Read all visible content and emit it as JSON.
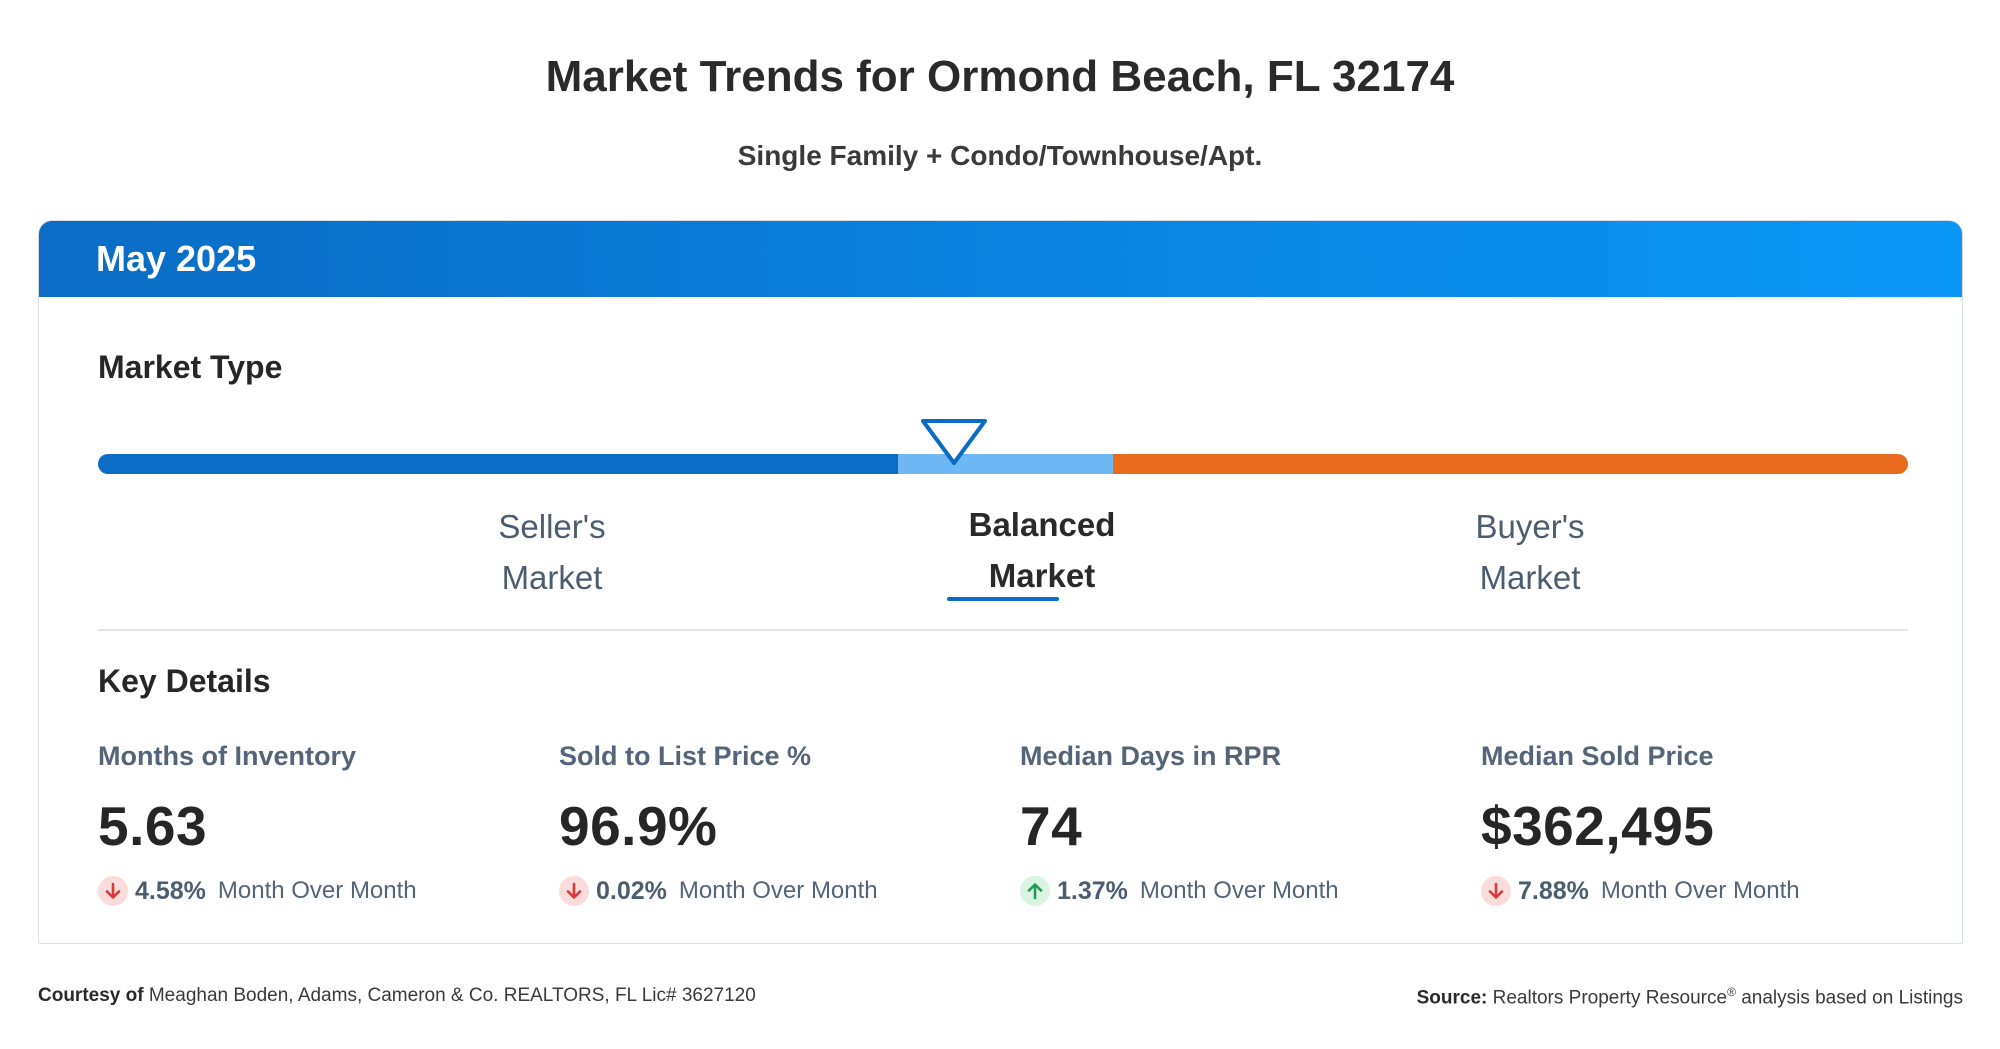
{
  "header": {
    "title": "Market Trends for Ormond Beach, FL 32174",
    "subtitle": "Single Family + Condo/Townhouse/Apt."
  },
  "card": {
    "period": "May 2025",
    "market_type": {
      "title": "Market Type",
      "selected": "balanced",
      "labels": {
        "seller_line1": "Seller's",
        "seller_line2": "Market",
        "balanced_line1": "Balanced",
        "balanced_line2": "Market",
        "buyer_line1": "Buyer's",
        "buyer_line2": "Market"
      },
      "colors": {
        "seller": "#0a6cc4",
        "balanced": "#6db8f5",
        "buyer": "#e96a1c"
      }
    },
    "key_details": {
      "title": "Key Details",
      "metrics": [
        {
          "label": "Months of Inventory",
          "value": "5.63",
          "change": "4.58%",
          "direction": "down",
          "change_label": "Month Over Month"
        },
        {
          "label": "Sold to List Price %",
          "value": "96.9%",
          "change": "0.02%",
          "direction": "down",
          "change_label": "Month Over Month"
        },
        {
          "label": "Median Days in RPR",
          "value": "74",
          "change": "1.37%",
          "direction": "up",
          "change_label": "Month Over Month"
        },
        {
          "label": "Median Sold Price",
          "value": "$362,495",
          "change": "7.88%",
          "direction": "down",
          "change_label": "Month Over Month"
        }
      ]
    }
  },
  "footer": {
    "courtesy_label": "Courtesy of",
    "courtesy_text": "Meaghan Boden, Adams, Cameron & Co. REALTORS, FL Lic# 3627120",
    "source_label": "Source:",
    "source_name": "Realtors Property Resource",
    "source_mark": "®",
    "source_text": "analysis based on Listings"
  },
  "icons": {
    "down": "arrow-down-icon",
    "up": "arrow-up-icon",
    "pointer": "triangle-pointer-icon"
  }
}
